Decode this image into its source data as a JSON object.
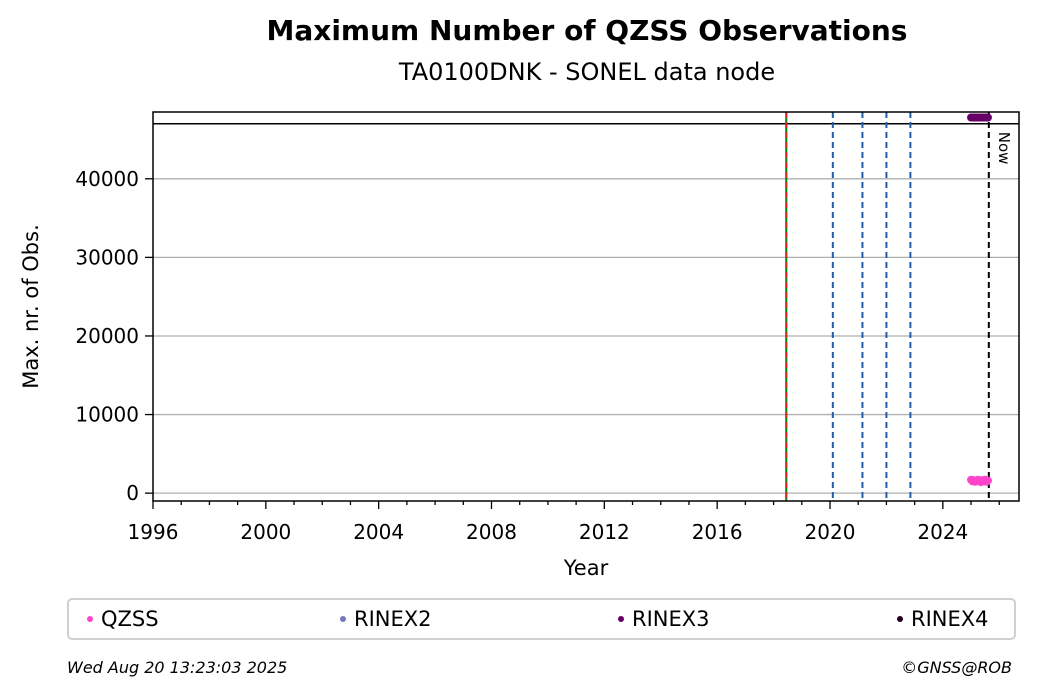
{
  "chart_data": {
    "type": "scatter",
    "title": "Maximum Number of QZSS Observations",
    "subtitle": "TA0100DNK - SONEL data node",
    "xlabel": "Year",
    "ylabel": "Max. nr. of Obs.",
    "xlim": [
      1996,
      2026.7
    ],
    "ylim": [
      -1000,
      48500
    ],
    "x_ticks": [
      1996,
      2000,
      2004,
      2008,
      2012,
      2016,
      2020,
      2024
    ],
    "y_ticks": [
      0,
      10000,
      20000,
      30000,
      40000
    ],
    "grid": "horizontal",
    "reference_line_y": 47000,
    "vertical_lines": [
      {
        "x": 2018.45,
        "style": "solid",
        "color": "#008000"
      },
      {
        "x": 2018.45,
        "style": "dashed",
        "color": "#d62728"
      },
      {
        "x": 2020.1,
        "style": "dashed",
        "color": "#1f5fa8"
      },
      {
        "x": 2021.15,
        "style": "dashed",
        "color": "#1f5fa8"
      },
      {
        "x": 2022.0,
        "style": "dashed",
        "color": "#1f5fa8"
      },
      {
        "x": 2022.85,
        "style": "dashed",
        "color": "#1f5fa8"
      },
      {
        "x": 2025.63,
        "style": "dashed",
        "color": "#000000",
        "label": "Now"
      }
    ],
    "series": [
      {
        "name": "QZSS",
        "color": "#ff44cc",
        "x": [
          2025.0,
          2025.05,
          2025.1,
          2025.15,
          2025.2,
          2025.25,
          2025.3,
          2025.35,
          2025.4,
          2025.45,
          2025.5,
          2025.55,
          2025.6
        ],
        "y": [
          1700,
          1500,
          1650,
          1450,
          1600,
          1700,
          1550,
          1400,
          1650,
          1500,
          1700,
          1450,
          1600
        ]
      },
      {
        "name": "RINEX2",
        "color": "#7777bb",
        "x": [],
        "y": []
      },
      {
        "name": "RINEX3",
        "color": "#660066",
        "x": [
          2025.0,
          2025.05,
          2025.1,
          2025.15,
          2025.2,
          2025.25,
          2025.3,
          2025.35,
          2025.4,
          2025.45,
          2025.5,
          2025.55,
          2025.6
        ],
        "y": [
          47800,
          47800,
          47800,
          47800,
          47800,
          47800,
          47800,
          47800,
          47800,
          47800,
          47800,
          47800,
          47800
        ]
      },
      {
        "name": "RINEX4",
        "color": "#220022",
        "x": [],
        "y": []
      }
    ]
  },
  "footer": {
    "timestamp": "Wed Aug 20 13:23:03 2025",
    "credit": "©GNSS@ROB"
  }
}
